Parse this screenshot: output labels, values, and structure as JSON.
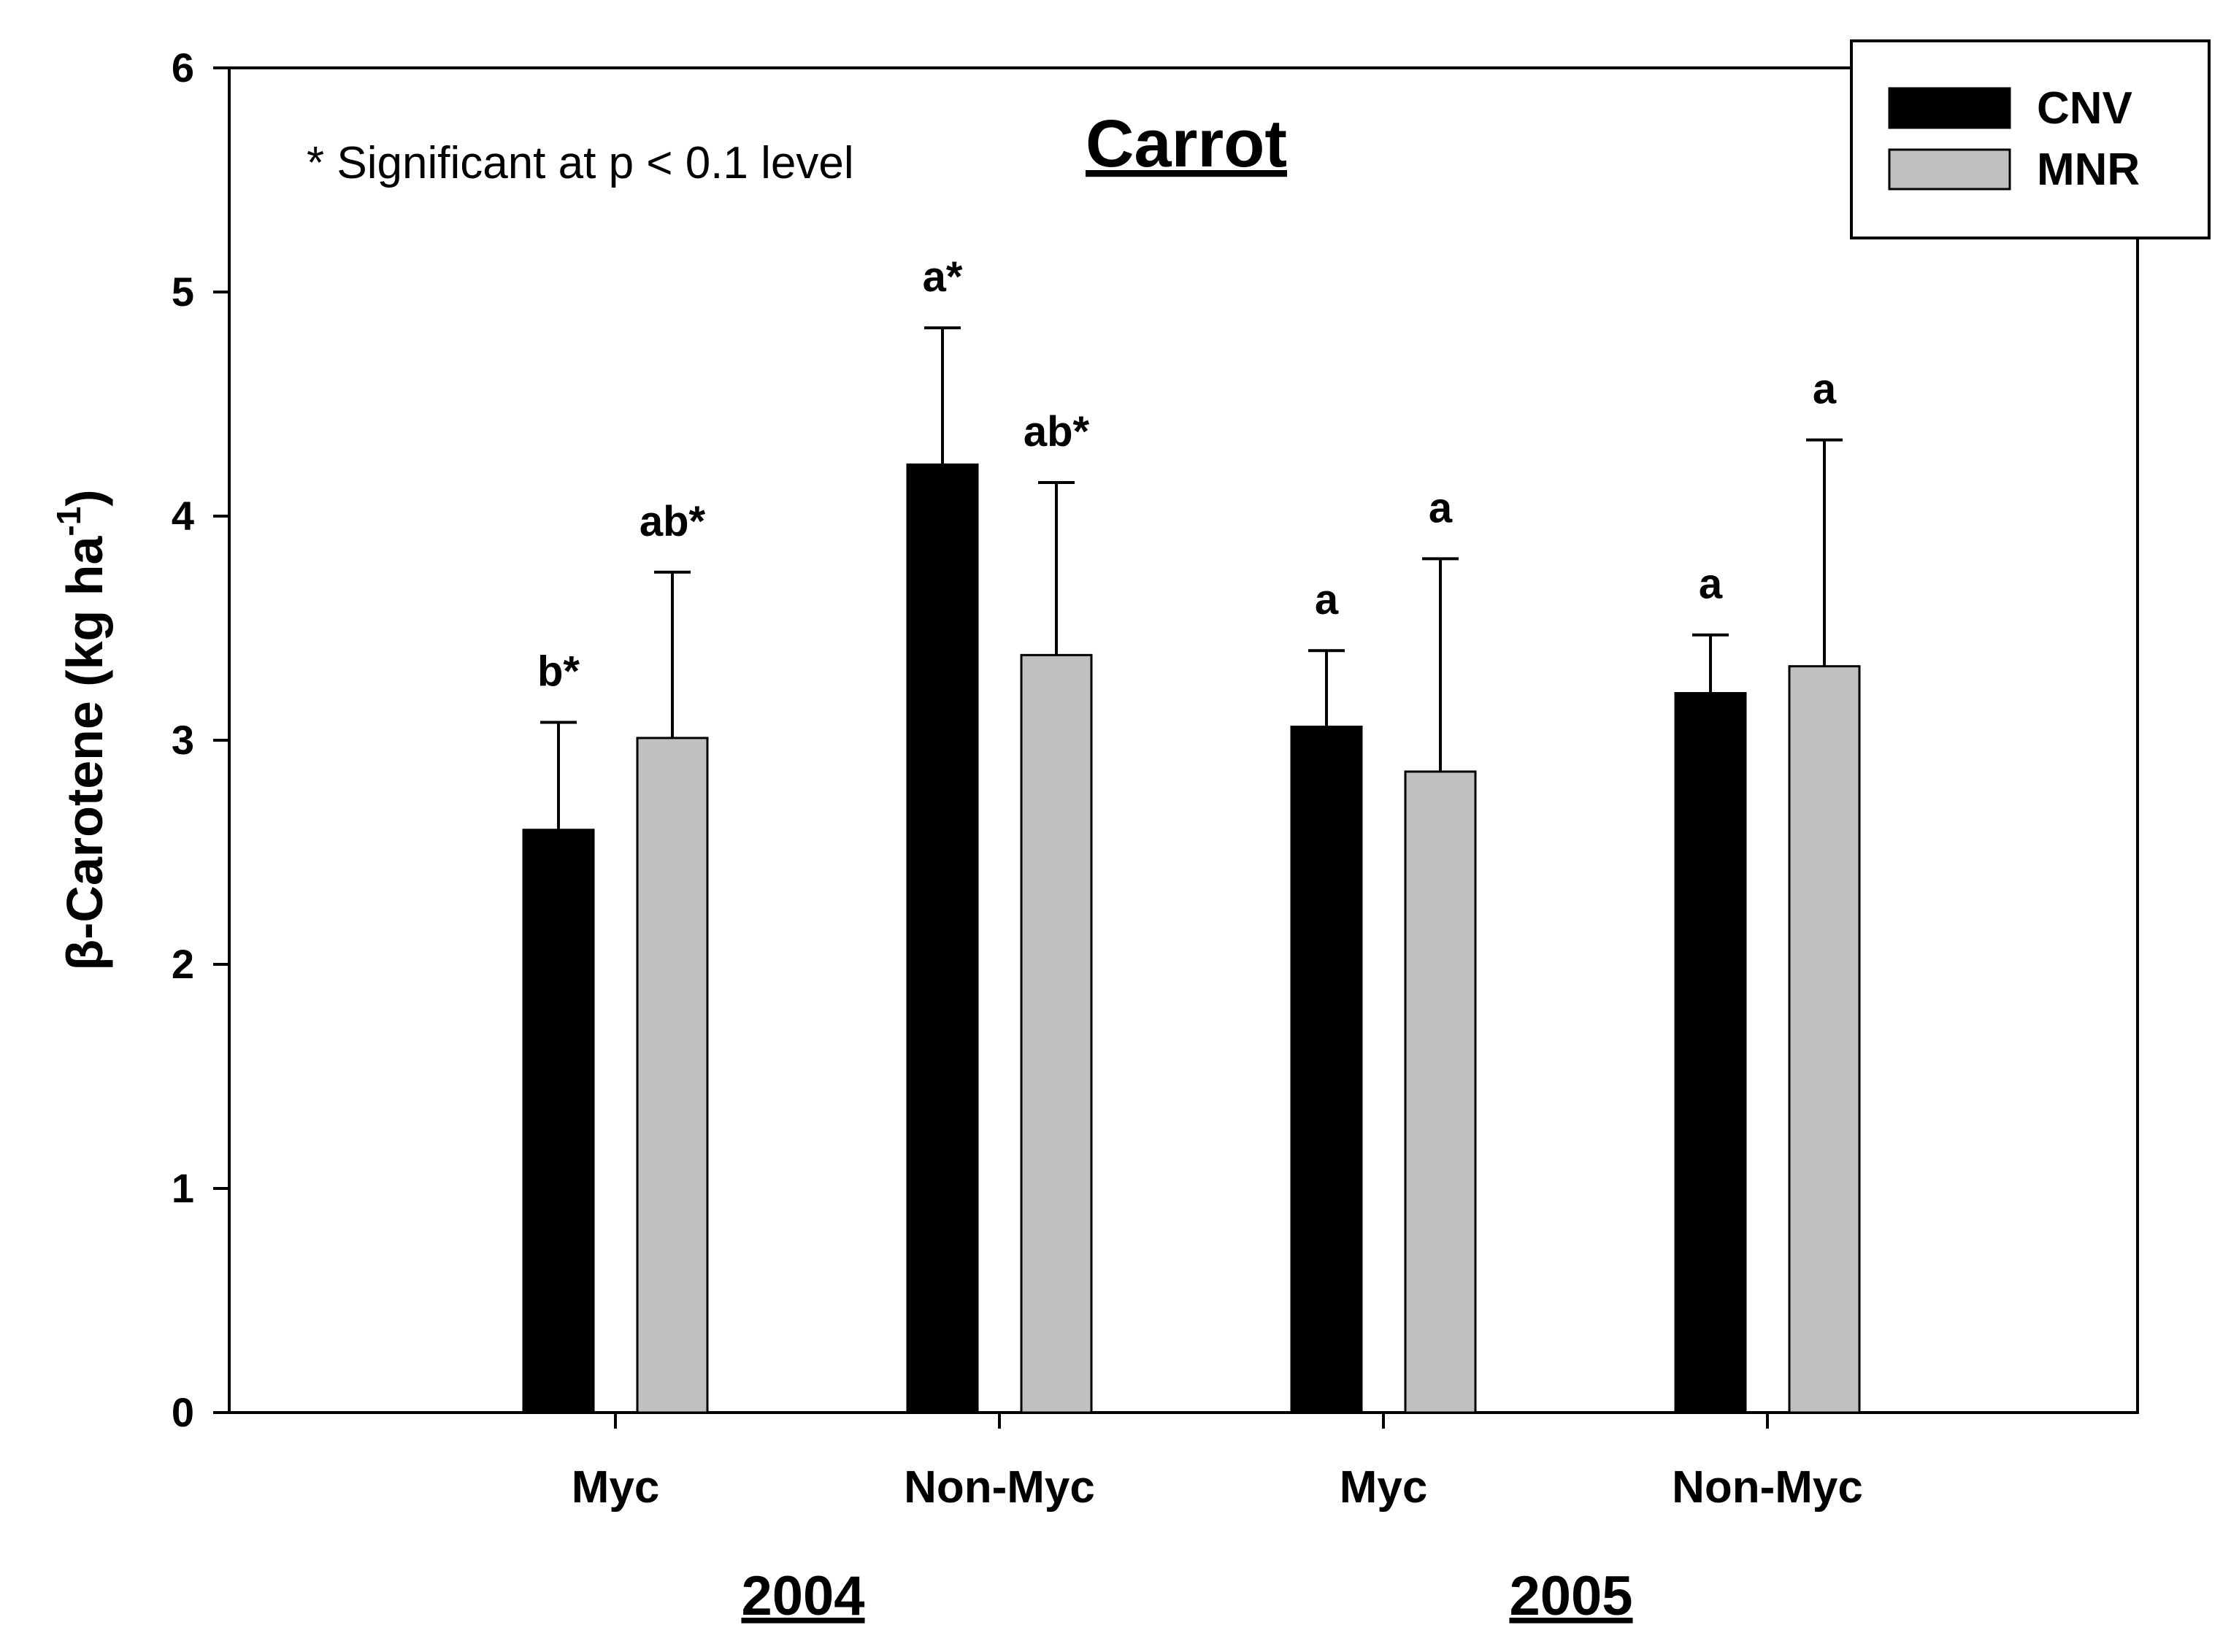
{
  "chart_data": {
    "type": "bar",
    "title": "Carrot",
    "annotation": "* Significant at p < 0.1 level",
    "ylabel": "β-Carotene (kg ha",
    "ylabel_sup": "-1",
    "ylabel_close": ")",
    "xlabel": "",
    "ylim": [
      0,
      6
    ],
    "yticks": [
      "0",
      "1",
      "2",
      "3",
      "4",
      "5",
      "6"
    ],
    "categories": [
      "Myc",
      "Non-Myc",
      "Myc",
      "Non-Myc"
    ],
    "groups": [
      {
        "label": "2004",
        "categories": [
          0,
          1
        ]
      },
      {
        "label": "2005",
        "categories": [
          2,
          3
        ]
      }
    ],
    "series": [
      {
        "name": "CNV",
        "color": "#000000",
        "values": [
          2.6,
          4.23,
          3.06,
          3.21
        ],
        "errors": [
          0.48,
          0.61,
          0.34,
          0.26
        ],
        "labels": [
          "b*",
          "a*",
          "a",
          "a"
        ]
      },
      {
        "name": "MNR",
        "color": "#c0c0c0",
        "values": [
          3.01,
          3.38,
          2.86,
          3.33
        ],
        "errors": [
          0.74,
          0.77,
          0.95,
          1.01
        ],
        "labels": [
          "ab*",
          "ab*",
          "a",
          "a"
        ]
      }
    ],
    "legend": "top-right"
  }
}
